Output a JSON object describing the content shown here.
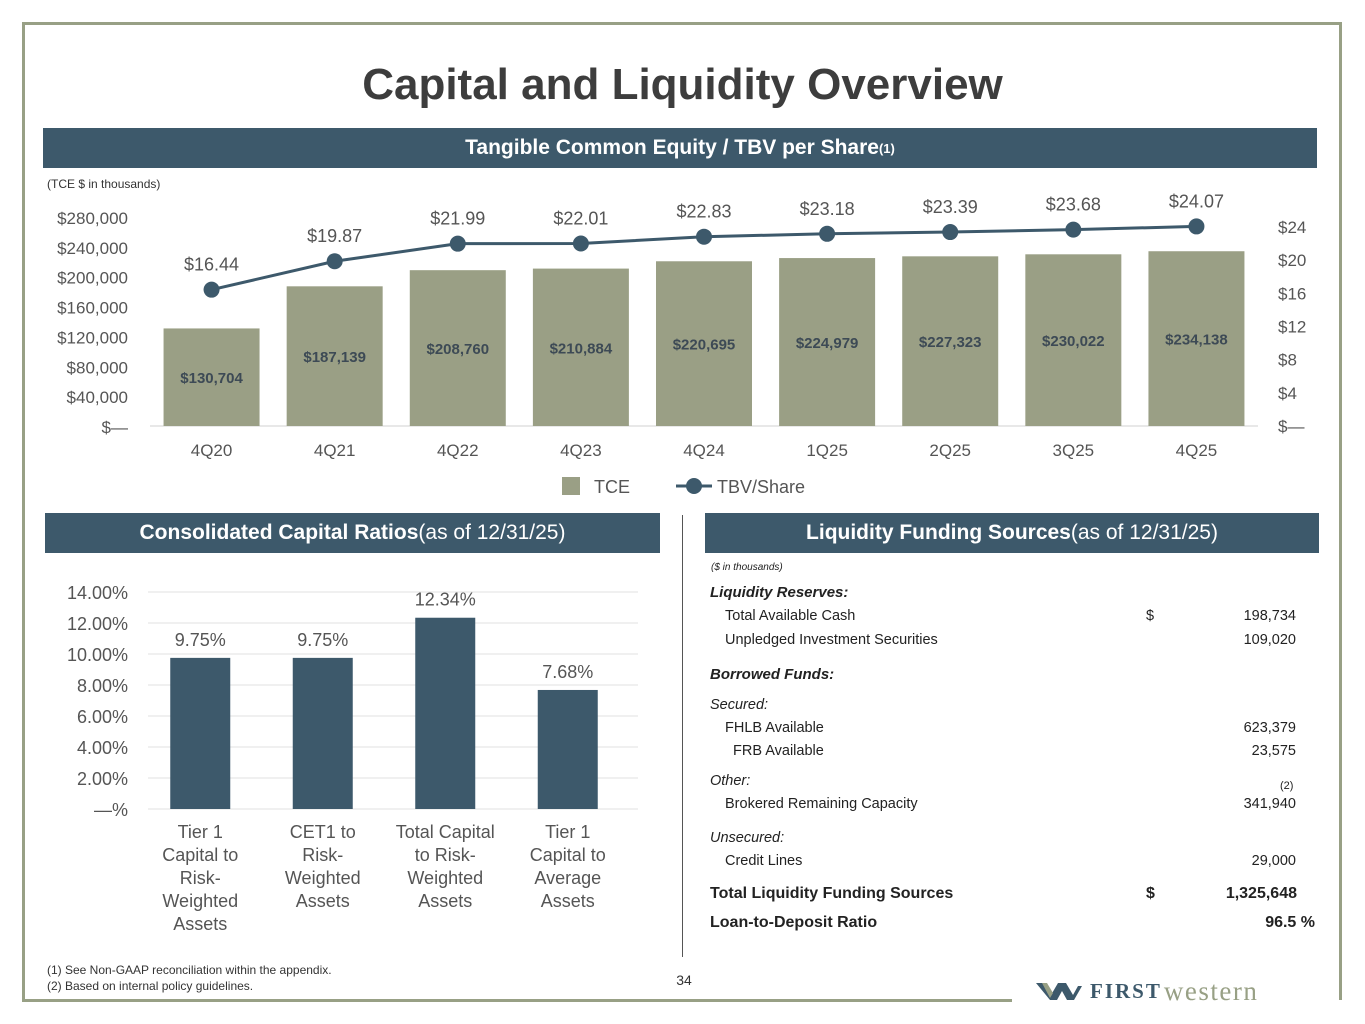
{
  "page": {
    "title": "Capital and Liquidity Overview",
    "page_number": "34",
    "logo_first": "FIRST",
    "logo_western": "western",
    "footnotes": [
      "(1)  See Non-GAAP reconciliation within the appendix.",
      "(2)  Based on internal policy guidelines."
    ]
  },
  "tce_section": {
    "banner": "Tangible Common Equity / TBV per Share",
    "banner_sup": "(1)",
    "units_note": "(TCE $ in thousands)"
  },
  "ratios_section": {
    "banner_bold": "Consolidated Capital Ratios",
    "banner_light": " (as of 12/31/25)"
  },
  "liquidity_section": {
    "banner_bold": "Liquidity Funding Sources",
    "banner_light": " (as of 12/31/25)",
    "units_note": "($ in thousands)",
    "reserves_heading": "Liquidity Reserves:",
    "total_cash_label": "Total Available Cash",
    "dollar_sign": "$",
    "total_cash_value": "198,734",
    "unpledged_label": "Unpledged Investment Securities",
    "unpledged_value": "109,020",
    "borrowed_heading": "Borrowed Funds:",
    "secured_heading": "Secured:",
    "fhlb_label": "FHLB Available",
    "fhlb_value": "623,379",
    "frb_label": "FRB Available",
    "frb_value": "23,575",
    "other_heading": "Other:",
    "brokered_sup": "(2)",
    "brokered_label": "Brokered Remaining Capacity",
    "brokered_value": "341,940",
    "unsecured_heading": "Unsecured:",
    "credit_label": "Credit Lines",
    "credit_value": "29,000",
    "total_label": "Total Liquidity Funding Sources",
    "total_dollar": "$",
    "total_value": "1,325,648",
    "ltd_label": "Loan-to-Deposit Ratio",
    "ltd_value": "96.5 %"
  },
  "chart_data": [
    {
      "type": "bar",
      "categories": [
        "4Q20",
        "4Q21",
        "4Q22",
        "4Q23",
        "4Q24",
        "1Q25",
        "2Q25",
        "3Q25",
        "4Q25"
      ],
      "series": [
        {
          "name": "TCE",
          "type": "bar",
          "axis": "left",
          "color": "#9a9f85",
          "values": [
            130704,
            187139,
            208760,
            210884,
            220695,
            224979,
            227323,
            230022,
            234138
          ],
          "labels": [
            "$130,704",
            "$187,139",
            "$208,760",
            "$210,884",
            "$220,695",
            "$224,979",
            "$227,323",
            "$230,022",
            "$234,138"
          ]
        },
        {
          "name": "TBV/Share",
          "type": "line",
          "axis": "right",
          "color": "#3d596b",
          "values": [
            16.44,
            19.87,
            21.99,
            22.01,
            22.83,
            23.18,
            23.39,
            23.68,
            24.07
          ],
          "labels": [
            "$16.44",
            "$19.87",
            "$21.99",
            "$22.01",
            "$22.83",
            "$23.18",
            "$23.39",
            "$23.68",
            "$24.07"
          ]
        }
      ],
      "ylim_left": [
        0,
        280000
      ],
      "yticks_left": [
        "$—",
        "$40,000",
        "$80,000",
        "$120,000",
        "$160,000",
        "$200,000",
        "$240,000",
        "$280,000"
      ],
      "ylim_right": [
        0,
        24
      ],
      "yticks_right": [
        "$—",
        "$4",
        "$8",
        "$12",
        "$16",
        "$20",
        "$24"
      ],
      "legend": "bottom-center",
      "grid": false
    },
    {
      "type": "bar",
      "categories": [
        [
          "Tier 1",
          "Capital to",
          "Risk-",
          "Weighted",
          "Assets"
        ],
        [
          "CET1 to",
          "Risk-",
          "Weighted",
          "Assets"
        ],
        [
          "Total Capital",
          "to Risk-",
          "Weighted",
          "Assets"
        ],
        [
          "Tier 1",
          "Capital to",
          "Average",
          "Assets"
        ]
      ],
      "values": [
        9.75,
        9.75,
        12.34,
        7.68
      ],
      "labels": [
        "9.75%",
        "9.75%",
        "12.34%",
        "7.68%"
      ],
      "color": "#3d596b",
      "ylim": [
        0,
        14
      ],
      "yticks": [
        "—%",
        "2.00%",
        "4.00%",
        "6.00%",
        "8.00%",
        "10.00%",
        "12.00%",
        "14.00%"
      ],
      "grid": true
    }
  ]
}
